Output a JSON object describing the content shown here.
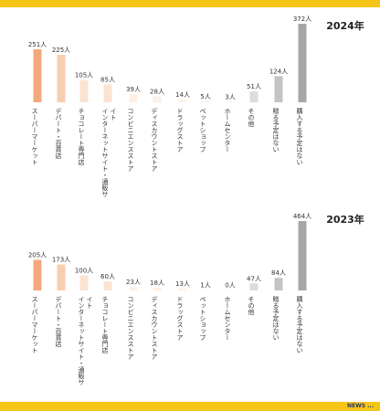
{
  "logo": {
    "text": "NEWS ..."
  },
  "chart_data": [
    {
      "type": "bar",
      "title": "2024年",
      "categories": [
        "スーパーマーケット",
        "デパート・百貨店",
        "チョコレート専門店",
        "インターネットサイト・通販サイト",
        "コンビニエンスストア",
        "ディスカウントストア",
        "ドラッグストア",
        "ペットショップ",
        "ホームセンター",
        "その他",
        "贈る予定はない",
        "購入する予定はない"
      ],
      "values": [
        251,
        225,
        105,
        85,
        39,
        28,
        14,
        5,
        3,
        51,
        124,
        372
      ],
      "value_labels": [
        "251人",
        "225人",
        "105人",
        "85人",
        "39人",
        "28人",
        "14人",
        "5人",
        "3人",
        "51人",
        "124人",
        "372人"
      ],
      "ylim": [
        0,
        372
      ],
      "colors": [
        "#f4a97d",
        "#f8cdb0",
        "#fbe3d2",
        "#fbe3d2",
        "#fdf0e6",
        "#fdf0e6",
        "#fdf0e6",
        "#fdf0e6",
        "#fdf0e6",
        "#dcdcdc",
        "#c4c4c4",
        "#a6a6a6"
      ],
      "grid": false
    },
    {
      "type": "bar",
      "title": "2023年",
      "categories": [
        "スーパーマーケット",
        "デパート・百貨店",
        "インターネットサイト・通販サイト",
        "チョコレート専門店",
        "コンビニエンスストア",
        "ディスカウントストア",
        "ドラッグストア",
        "ペットショップ",
        "ホームセンター",
        "その他",
        "贈る予定はない",
        "購入する予定はない"
      ],
      "values": [
        205,
        173,
        100,
        60,
        23,
        18,
        13,
        1,
        0,
        47,
        84,
        464
      ],
      "value_labels": [
        "205人",
        "173人",
        "100人",
        "60人",
        "23人",
        "18人",
        "13人",
        "1人",
        "0人",
        "47人",
        "84人",
        "464人"
      ],
      "ylim": [
        0,
        464
      ],
      "colors": [
        "#f4a97d",
        "#f8cdb0",
        "#fbe3d2",
        "#fbe3d2",
        "#fdf0e6",
        "#fdf0e6",
        "#fdf0e6",
        "#fdf0e6",
        "#fdf0e6",
        "#dcdcdc",
        "#c4c4c4",
        "#a6a6a6"
      ],
      "grid": false
    }
  ]
}
